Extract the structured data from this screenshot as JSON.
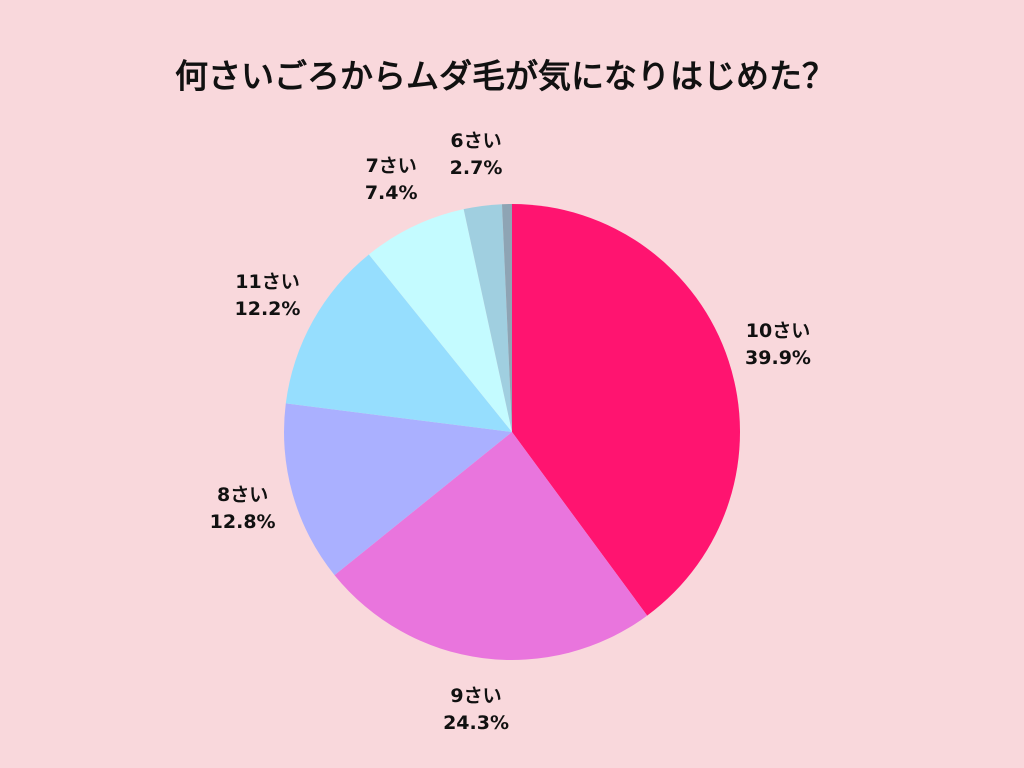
{
  "chart_data": {
    "type": "pie",
    "title": "何さいごろからムダ毛が気になりはじめた？",
    "categories": [
      "10さい",
      "9さい",
      "8さい",
      "11さい",
      "7さい",
      "6さい",
      null
    ],
    "values": [
      39.9,
      24.3,
      12.8,
      12.2,
      7.4,
      2.7,
      0.7
    ],
    "value_labels": [
      "39.9%",
      "24.3%",
      "12.8%",
      "12.2%",
      "7.4%",
      "2.7%",
      null
    ],
    "colors": [
      "#ff1470",
      "#e975dd",
      "#aab0ff",
      "#96defe",
      "#c4fbff",
      "#a0cfe0",
      "#8ea4b4"
    ]
  }
}
